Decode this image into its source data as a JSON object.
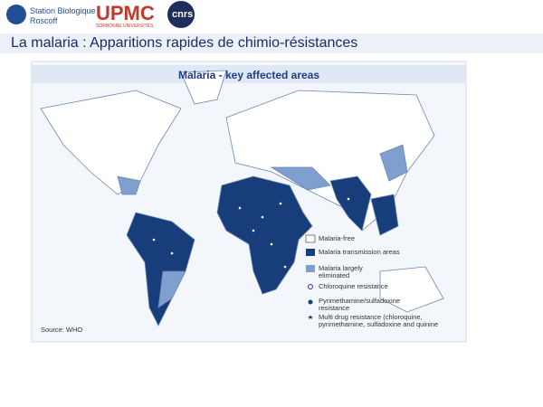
{
  "header": {
    "institute_small": "Station Biologique",
    "institute": "Roscoff",
    "upmc": "UPMC",
    "upmc_sub": "SORBONNE UNIVERSITÉS",
    "cnrs": "cnrs",
    "title": "La malaria : Apparitions rapides de chimio-résistances"
  },
  "map": {
    "title": "Malaria - key affected areas",
    "source": "Source: WHO",
    "legend": [
      "Malaria-free",
      "Malaria transmission areas",
      "Malaria largely eliminated",
      "Chloroquine resistance",
      "Pyrimethamine/sulfadoxine resistance",
      "Multi drug resistance (chloroquine, pyrimethamine, sulfadoxine and quinine"
    ]
  }
}
